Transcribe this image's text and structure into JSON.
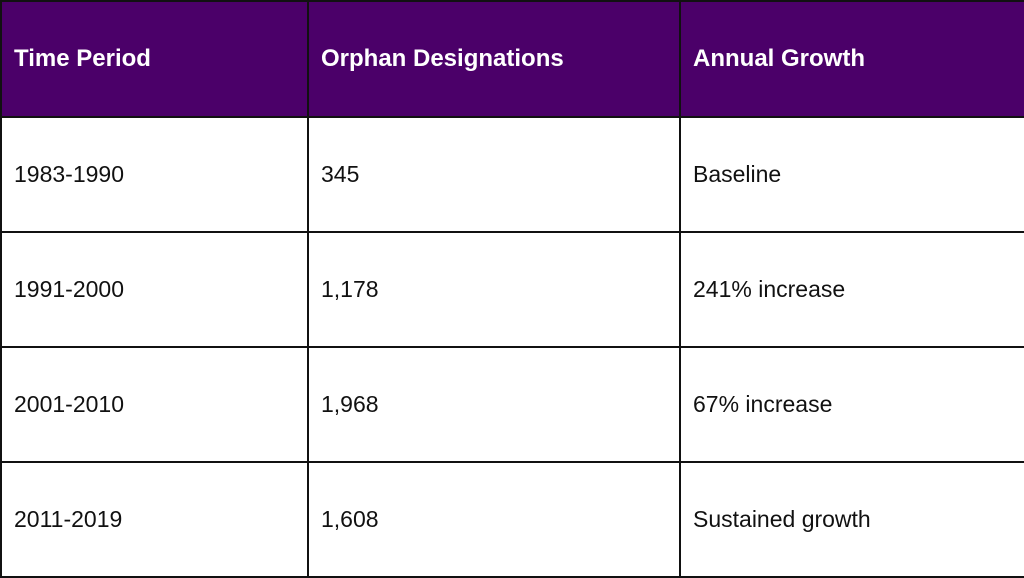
{
  "table": {
    "header_color": "#4b0069",
    "columns": [
      "Time Period",
      "Orphan Designations",
      "Annual Growth"
    ],
    "rows": [
      [
        "1983-1990",
        "345",
        "Baseline"
      ],
      [
        "1991-2000",
        "1,178",
        "241% increase"
      ],
      [
        "2001-2010",
        "1,968",
        "67% increase"
      ],
      [
        "2011-2019",
        "1,608",
        "Sustained growth"
      ]
    ]
  }
}
